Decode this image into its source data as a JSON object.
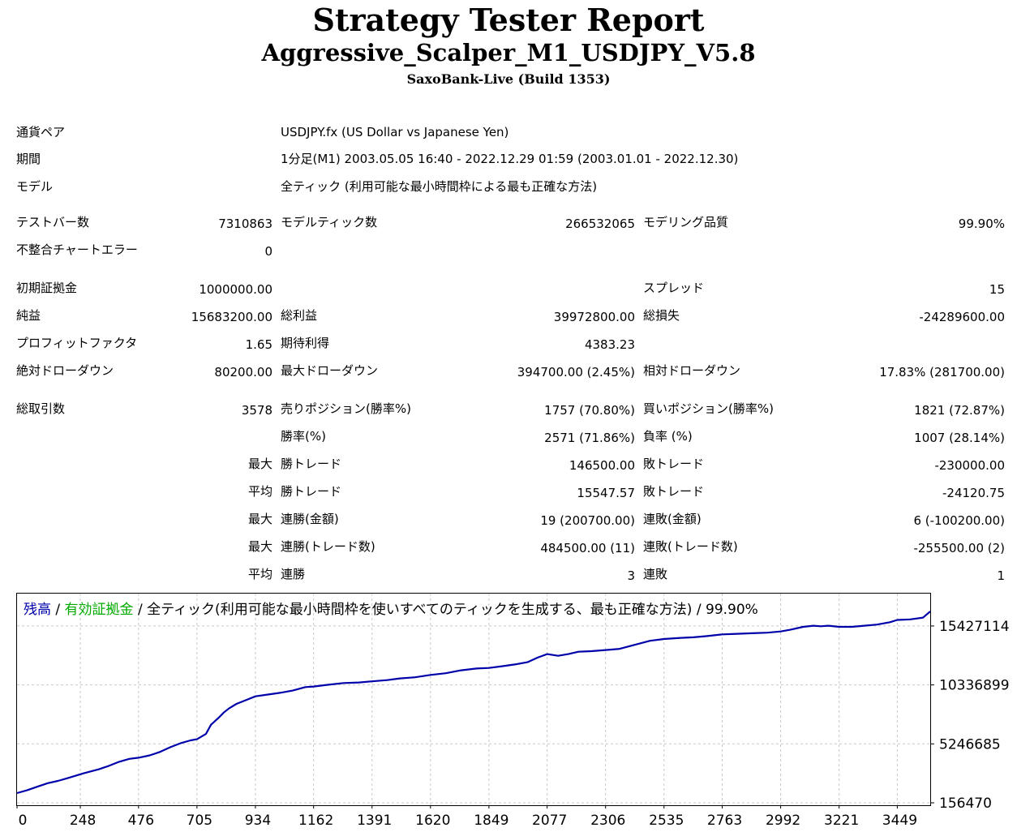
{
  "header": {
    "title": "Strategy Tester Report",
    "ea_name": "Aggressive_Scalper_M1_USDJPY_V5.8",
    "server": "SaxoBank-Live (Build 1353)"
  },
  "info": {
    "symbol_label": "通貨ペア",
    "symbol_value": "USDJPY.fx (US Dollar vs Japanese Yen)",
    "period_label": "期間",
    "period_value": "1分足(M1) 2003.05.05 16:40 - 2022.12.29 01:59 (2003.01.01 - 2022.12.30)",
    "model_label": "モデル",
    "model_value": "全ティック (利用可能な最小時間枠による最も正確な方法)"
  },
  "stats": {
    "bars_label": "テストバー数",
    "bars_value": "7310863",
    "ticks_label": "モデルティック数",
    "ticks_value": "266532065",
    "quality_label": "モデリング品質",
    "quality_value": "99.90%",
    "mismatch_label": "不整合チャートエラー",
    "mismatch_value": "0",
    "deposit_label": "初期証拠金",
    "deposit_value": "1000000.00",
    "spread_label": "スプレッド",
    "spread_value": "15",
    "net_label": "純益",
    "net_value": "15683200.00",
    "gross_profit_label": "総利益",
    "gross_profit_value": "39972800.00",
    "gross_loss_label": "総損失",
    "gross_loss_value": "-24289600.00",
    "pf_label": "プロフィットファクタ",
    "pf_value": "1.65",
    "payoff_label": "期待利得",
    "payoff_value": "4383.23",
    "abs_dd_label": "絶対ドローダウン",
    "abs_dd_value": "80200.00",
    "max_dd_label": "最大ドローダウン",
    "max_dd_value": "394700.00 (2.45%)",
    "rel_dd_label": "相対ドローダウン",
    "rel_dd_value": "17.83% (281700.00)",
    "trades_label": "総取引数",
    "trades_value": "3578",
    "short_label": "売りポジション(勝率%)",
    "short_value": "1757 (70.80%)",
    "long_label": "買いポジション(勝率%)",
    "long_value": "1821 (72.87%)",
    "win_label": "勝率(%)",
    "win_value": "2571 (71.86%)",
    "loss_label": "負率 (%)",
    "loss_value": "1007 (28.14%)",
    "q_max": "最大",
    "q_avg": "平均",
    "win_trade_label": "勝トレード",
    "loss_trade_label": "敗トレード",
    "largest_win_value": "146500.00",
    "largest_loss_value": "-230000.00",
    "avg_win_value": "15547.57",
    "avg_loss_value": "-24120.75",
    "cons_win_money_label": "連勝(金額)",
    "cons_win_money_value": "19 (200700.00)",
    "cons_loss_money_label": "連敗(金額)",
    "cons_loss_money_value": "6 (-100200.00)",
    "cons_win_count_label": "連勝(トレード数)",
    "cons_win_count_value": "484500.00 (11)",
    "cons_loss_count_label": "連敗(トレード数)",
    "cons_loss_count_value": "-255500.00 (2)",
    "avg_cons_win_label": "連勝",
    "avg_cons_win_value": "3",
    "avg_cons_loss_label": "連敗",
    "avg_cons_loss_value": "1"
  },
  "chart_data": {
    "type": "line",
    "legend_balance": "残高",
    "legend_sep1": " / ",
    "legend_equity": "有効証拠金",
    "legend_rest": " / 全ティック(利用可能な最小時間枠を使いすべてのティックを生成する、最も正確な方法) / 99.90%",
    "x_ticks": [
      "0",
      "248",
      "476",
      "705",
      "934",
      "1162",
      "1391",
      "1620",
      "1849",
      "2077",
      "2306",
      "2535",
      "2763",
      "2992",
      "3221",
      "3449"
    ],
    "y_ticks": [
      "15427114",
      "10336899",
      "5246685",
      "156470"
    ],
    "y_tick_values": [
      15427114,
      10336899,
      5246685,
      156470
    ],
    "xlim": [
      0,
      3578
    ],
    "ylim": [
      156470,
      16683200
    ],
    "grid": true,
    "colors": {
      "balance": "#0000aa",
      "equity": "#00aa00",
      "grid": "#c8c8c8",
      "border": "#000000"
    },
    "series": [
      {
        "name": "残高",
        "x": [
          0,
          40,
          80,
          120,
          160,
          200,
          260,
          320,
          360,
          400,
          440,
          476,
          520,
          560,
          600,
          640,
          680,
          705,
          740,
          760,
          790,
          810,
          830,
          860,
          900,
          934,
          980,
          1030,
          1080,
          1130,
          1162,
          1220,
          1280,
          1340,
          1391,
          1450,
          1500,
          1560,
          1620,
          1680,
          1740,
          1800,
          1849,
          1900,
          1950,
          2000,
          2040,
          2077,
          2120,
          2160,
          2200,
          2250,
          2306,
          2360,
          2420,
          2480,
          2535,
          2600,
          2650,
          2700,
          2763,
          2820,
          2880,
          2940,
          2992,
          3030,
          3080,
          3120,
          3150,
          3180,
          3221,
          3270,
          3320,
          3370,
          3420,
          3449,
          3500,
          3550,
          3578
        ],
        "y": [
          1000000,
          1250000,
          1550000,
          1850000,
          2050000,
          2300000,
          2700000,
          3050000,
          3350000,
          3700000,
          3950000,
          4050000,
          4250000,
          4550000,
          4950000,
          5300000,
          5550000,
          5650000,
          6100000,
          6900000,
          7500000,
          7950000,
          8300000,
          8700000,
          9050000,
          9350000,
          9500000,
          9650000,
          9850000,
          10150000,
          10200000,
          10350000,
          10500000,
          10550000,
          10650000,
          10750000,
          10900000,
          11000000,
          11200000,
          11350000,
          11600000,
          11750000,
          11800000,
          11950000,
          12100000,
          12300000,
          12700000,
          13000000,
          12850000,
          13000000,
          13200000,
          13250000,
          13350000,
          13450000,
          13800000,
          14150000,
          14300000,
          14400000,
          14450000,
          14550000,
          14700000,
          14750000,
          14800000,
          14850000,
          14950000,
          15100000,
          15350000,
          15450000,
          15400000,
          15450000,
          15350000,
          15350000,
          15450000,
          15550000,
          15750000,
          15950000,
          16000000,
          16150000,
          16683200
        ]
      }
    ]
  }
}
